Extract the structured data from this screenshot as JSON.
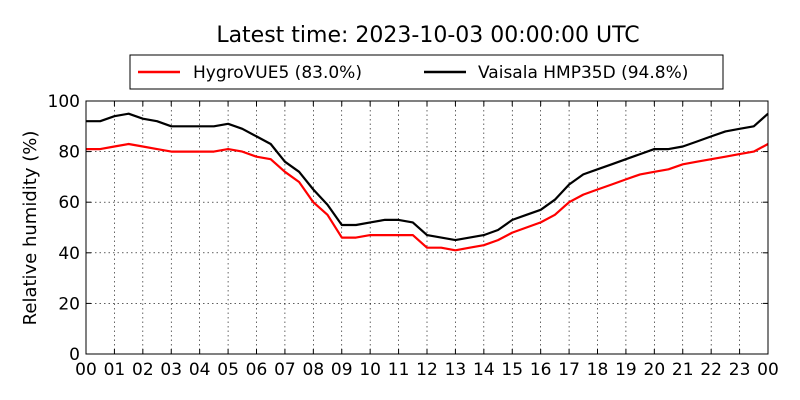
{
  "chart_data": {
    "type": "line",
    "title": "Latest time: 2023-10-03 00:00:00 UTC",
    "xlabel": "",
    "ylabel": "Relative humidity (%)",
    "xlim": [
      0,
      24
    ],
    "ylim": [
      0,
      100
    ],
    "grid": true,
    "legend_position": "top",
    "x_tick_labels": [
      "00",
      "01",
      "02",
      "03",
      "04",
      "05",
      "06",
      "07",
      "08",
      "09",
      "10",
      "11",
      "12",
      "13",
      "14",
      "15",
      "16",
      "17",
      "18",
      "19",
      "20",
      "21",
      "22",
      "23",
      "00"
    ],
    "y_tick_labels": [
      "0",
      "20",
      "40",
      "60",
      "80",
      "100"
    ],
    "x": [
      0,
      0.5,
      1,
      1.5,
      2,
      2.5,
      3,
      3.5,
      4,
      4.5,
      5,
      5.5,
      6,
      6.5,
      7,
      7.5,
      8,
      8.5,
      9,
      9.5,
      10,
      10.5,
      11,
      11.5,
      12,
      12.5,
      13,
      13.5,
      14,
      14.5,
      15,
      15.5,
      16,
      16.5,
      17,
      17.5,
      18,
      18.5,
      19,
      19.5,
      20,
      20.5,
      21,
      21.5,
      22,
      22.5,
      23,
      23.5,
      24
    ],
    "series": [
      {
        "name": "HygroVUE5 (83.0%)",
        "color": "#ff0000",
        "values": [
          81,
          81,
          82,
          83,
          82,
          81,
          80,
          80,
          80,
          80,
          81,
          80,
          78,
          77,
          72,
          68,
          60,
          55,
          46,
          46,
          47,
          47,
          47,
          47,
          42,
          42,
          41,
          42,
          43,
          45,
          48,
          50,
          52,
          55,
          60,
          63,
          65,
          67,
          69,
          71,
          72,
          73,
          75,
          76,
          77,
          78,
          79,
          80,
          83
        ]
      },
      {
        "name": "Vaisala HMP35D (94.8%)",
        "color": "#000000",
        "values": [
          92,
          92,
          94,
          95,
          93,
          92,
          90,
          90,
          90,
          90,
          91,
          89,
          86,
          83,
          76,
          72,
          65,
          59,
          51,
          51,
          52,
          53,
          53,
          52,
          47,
          46,
          45,
          46,
          47,
          49,
          53,
          55,
          57,
          61,
          67,
          71,
          73,
          75,
          77,
          79,
          81,
          81,
          82,
          84,
          86,
          88,
          89,
          90,
          95
        ]
      }
    ]
  }
}
